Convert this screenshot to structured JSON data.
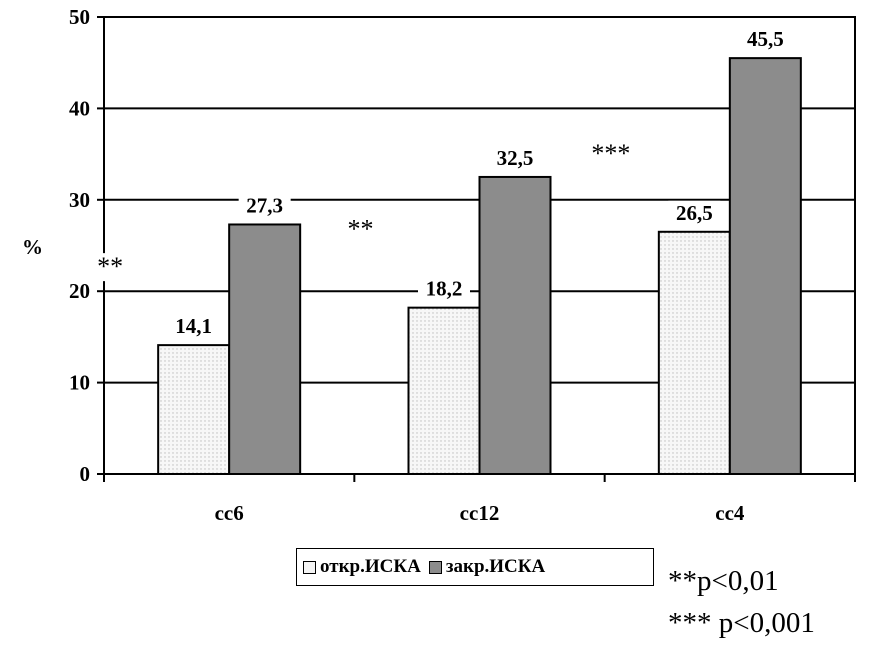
{
  "chart_data": {
    "type": "bar",
    "categories": [
      "cc6",
      "cc12",
      "cc4"
    ],
    "series": [
      {
        "name": "откр.ИСКА",
        "values": [
          14.1,
          18.2,
          26.5
        ],
        "labels": [
          "14,1",
          "18,2",
          "26,5"
        ],
        "color": "#f4f4f4"
      },
      {
        "name": "закр.ИСКА",
        "values": [
          27.3,
          32.5,
          45.5
        ],
        "labels": [
          "27,3",
          "32,5",
          "45,5"
        ],
        "color": "#8c8c8c"
      }
    ],
    "ylabel": "%",
    "ylim": [
      0,
      50
    ],
    "yticks": [
      0,
      10,
      20,
      30,
      40,
      50
    ],
    "grid": true,
    "legend_position": "bottom",
    "significance_marks": [
      "**",
      "**",
      "***"
    ]
  },
  "notes": [
    "**p<0,01",
    "*** p<0,001"
  ]
}
